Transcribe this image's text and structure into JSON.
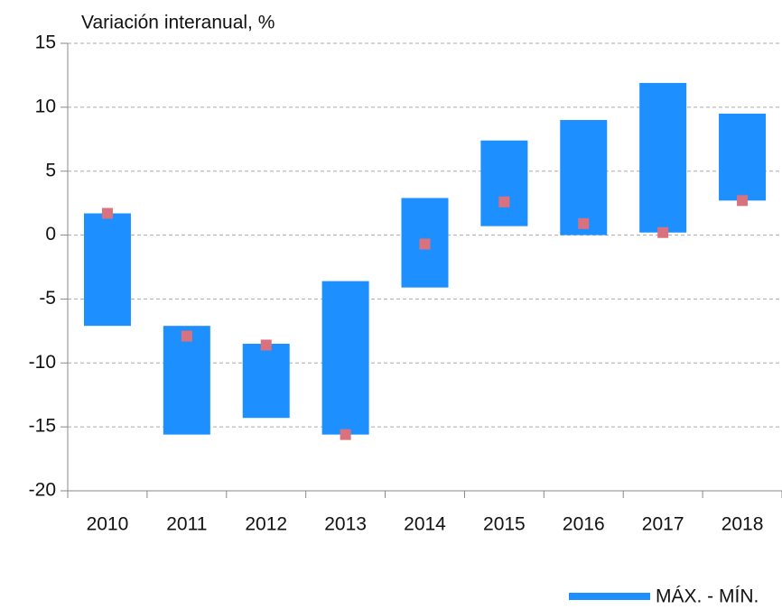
{
  "chart_data": {
    "type": "floating_bar",
    "title": "Variación interanual, %",
    "categories": [
      "2010",
      "2011",
      "2012",
      "2013",
      "2014",
      "2015",
      "2016",
      "2017",
      "2018"
    ],
    "series": [
      {
        "name": "MÁX. - MÍN.",
        "color": "#1e8fff",
        "max": [
          1.7,
          -7.1,
          -8.5,
          -3.6,
          2.9,
          7.4,
          9.0,
          11.9,
          9.5
        ],
        "min": [
          -7.1,
          -15.6,
          -14.3,
          -15.6,
          -4.1,
          0.7,
          0.0,
          0.2,
          2.7
        ]
      },
      {
        "color": "#d9727f",
        "values": [
          1.7,
          -7.9,
          -8.6,
          -15.6,
          -0.7,
          2.6,
          0.9,
          0.2,
          2.7
        ]
      }
    ],
    "ylim": [
      -20,
      15
    ],
    "yticks": [
      -20,
      -15,
      -10,
      -5,
      0,
      5,
      10,
      15
    ],
    "grid": true
  }
}
